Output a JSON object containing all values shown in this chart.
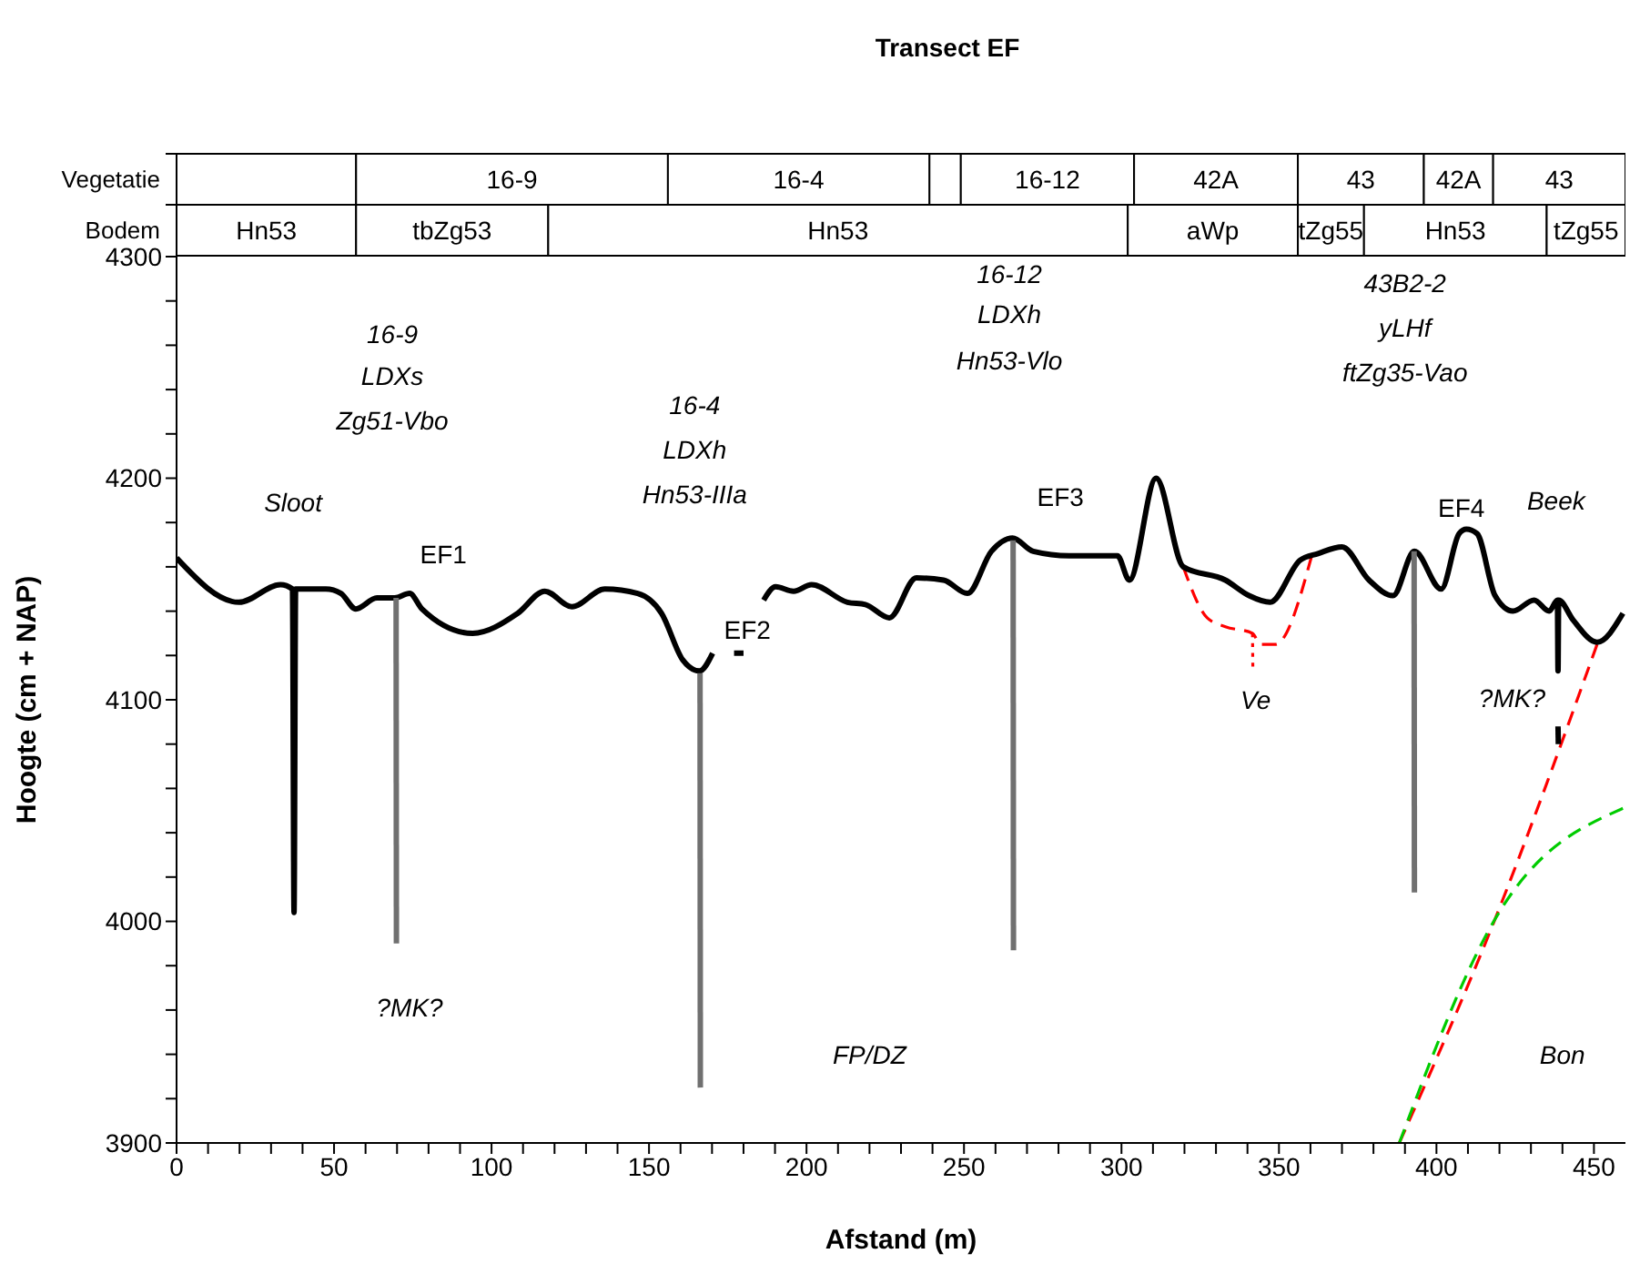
{
  "chart_data": [
    {
      "type": "other",
      "title": "Transect EF",
      "annotations": [
        "Vegetatie",
        "16-9",
        "16-4",
        "16-12",
        "42A",
        "43",
        "42A",
        "43",
        "Bodem",
        "Hn53",
        "tbZg53",
        "Hn53",
        "aWp",
        "tZg55",
        "Hn53",
        "tZg55"
      ]
    },
    {
      "type": "line",
      "xlabel": "Afstand (m)",
      "ylabel": "Hoogte (cm + NAP)",
      "xlim": [
        0,
        460
      ],
      "ylim": [
        3900,
        4300
      ],
      "marker": "none",
      "xticks": [
        0,
        {
          "value": 10,
          "label": null
        },
        {
          "value": 20,
          "label": null
        },
        {
          "value": 30,
          "label": null
        },
        {
          "value": 40,
          "label": null
        },
        50,
        {
          "value": 60,
          "label": null
        },
        {
          "value": 70,
          "label": null
        },
        {
          "value": 80,
          "label": null
        },
        {
          "value": 90,
          "label": null
        },
        100,
        {
          "value": 110,
          "label": null
        },
        {
          "value": 120,
          "label": null
        },
        {
          "value": 130,
          "label": null
        },
        {
          "value": 140,
          "label": null
        },
        150,
        {
          "value": 160,
          "label": null
        },
        {
          "value": 170,
          "label": null
        },
        {
          "value": 180,
          "label": null
        },
        {
          "value": 190,
          "label": null
        },
        200,
        {
          "value": 210,
          "label": null
        },
        {
          "value": 220,
          "label": null
        },
        {
          "value": 230,
          "label": null
        },
        {
          "value": 240,
          "label": null
        },
        250,
        {
          "value": 260,
          "label": null
        },
        {
          "value": 270,
          "label": null
        },
        {
          "value": 280,
          "label": null
        },
        {
          "value": 290,
          "label": null
        },
        300,
        {
          "value": 310,
          "label": null
        },
        {
          "value": 320,
          "label": null
        },
        {
          "value": 330,
          "label": null
        },
        {
          "value": 340,
          "label": null
        },
        350,
        {
          "value": 360,
          "label": null
        },
        {
          "value": 370,
          "label": null
        },
        {
          "value": 380,
          "label": null
        },
        {
          "value": 390,
          "label": null
        },
        400,
        {
          "value": 410,
          "label": null
        },
        {
          "value": 420,
          "label": null
        },
        {
          "value": 430,
          "label": null
        },
        {
          "value": 440,
          "label": null
        },
        450
      ],
      "yticks": [
        3900,
        {
          "value": 3920,
          "label": null
        },
        {
          "value": 3940,
          "label": null
        },
        {
          "value": 3960,
          "label": null
        },
        {
          "value": 3980,
          "label": null
        },
        4000,
        {
          "value": 4020,
          "label": null
        },
        {
          "value": 4040,
          "label": null
        },
        {
          "value": 4060,
          "label": null
        },
        {
          "value": 4080,
          "label": null
        },
        4100,
        {
          "value": 4120,
          "label": null
        },
        {
          "value": 4140,
          "label": null
        },
        {
          "value": 4160,
          "label": null
        },
        {
          "value": 4180,
          "label": null
        },
        4200,
        {
          "value": 4220,
          "label": null
        },
        {
          "value": 4240,
          "label": null
        },
        {
          "value": 4260,
          "label": null
        },
        {
          "value": 4280,
          "label": null
        },
        4300
      ],
      "series": [
        {
          "color": "#ff0000",
          "line_style": "dashed",
          "x": [
            319.6,
            327.2,
            333,
            341.6,
            344.2,
            348.8,
            360.4
          ],
          "values": [
            4160,
            4137,
            4133,
            4130,
            4125,
            4125,
            4165
          ]
        },
        {
          "color": "#ff0000",
          "line_style": "dotted",
          "x": [
            341.6,
            341.7
          ],
          "values": [
            4130,
            4115
          ]
        },
        {
          "color": "#ff0000",
          "line_style": "dashed",
          "x": [
            388.2,
            418.6,
            451
          ],
          "values": [
            3900,
            4001,
            4125
          ]
        },
        {
          "color": "#00cc00",
          "line_style": "dashed",
          "x": [
            388.2,
            418.6,
            459.2
          ],
          "values": [
            3900,
            4001,
            4051
          ]
        },
        {
          "color": "#000000",
          "line_style": "solid",
          "x": [
            0,
            19.8,
            33,
            36.8,
            37.3,
            37.8,
            47.4,
            52.2,
            56.9,
            63.6,
            69.3,
            74,
            77.9,
            94,
            108.3,
            116.9,
            125.5,
            136,
            146.4,
            154,
            160.7,
            166,
            170.2,
            173,
            177,
            180,
            183,
            186.4,
            190.2,
            195.9,
            201.6,
            213,
            218.7,
            226.3,
            234.9,
            243.5,
            251.1,
            258.7,
            265.4,
            272,
            283.4,
            298.7,
            302.5,
            311,
            319.6,
            333,
            340.5,
            347.2,
            356.7,
            362.4,
            370,
            378.6,
            386.2,
            393,
            401.5,
            407.2,
            409.5,
            412.9,
            418.6,
            424.3,
            431,
            435.8,
            438.4,
            438.6,
            438.8,
            443.4,
            451,
            459.2
          ],
          "values": [
            4164,
            4144,
            4152,
            4150,
            4004,
            4150,
            4150,
            4148,
            4141,
            4146,
            4146,
            4148,
            4141,
            4130,
            4139,
            4149,
            4142,
            4150,
            4148,
            4139,
            4118,
            4113,
            4121,
            null,
            4121,
            4121,
            null,
            4145,
            4151,
            4149,
            4152,
            4144,
            4143,
            4137,
            4155,
            4154,
            4148,
            4167,
            4173,
            4167,
            4165,
            4165,
            4154,
            4200,
            4160,
            4154,
            4147,
            4144,
            4163,
            4166,
            4169,
            4154,
            4147,
            4167,
            4150,
            4175,
            4177,
            4175,
            4147,
            4140,
            4145,
            4140,
            4145,
            4113,
            4145,
            4136,
            4126,
            4139
          ]
        },
        {
          "color": "#000000",
          "line_style": "solid",
          "x": [
            438.6,
            438.7
          ],
          "values": [
            4088,
            4080
          ]
        },
        {
          "name": "EF1",
          "color": "#707070",
          "line_style": "solid",
          "x": [
            69.7,
            69.8
          ],
          "values": [
            4146,
            3990
          ]
        },
        {
          "name": "EF2",
          "color": "#707070",
          "line_style": "solid",
          "x": [
            166.2,
            166.3
          ],
          "values": [
            4112,
            3925
          ]
        },
        {
          "name": "EF3",
          "color": "#707070",
          "line_style": "solid",
          "x": [
            265.6,
            265.7
          ],
          "values": [
            4172,
            3987
          ]
        },
        {
          "name": "EF4",
          "color": "#707070",
          "line_style": "solid",
          "x": [
            392.9,
            393
          ],
          "values": [
            4167,
            4013
          ]
        }
      ],
      "annotations": [
        "16-9",
        "LDXs",
        "Zg51-Vbo",
        "16-4",
        "LDXh",
        "Hn53-IIIa",
        "16-12",
        "LDXh",
        "Hn53-Vlo",
        "43B2-2",
        "yLHf",
        "ftZg35-Vao",
        "Sloot",
        "Beek",
        "Ve",
        "?MK?",
        "?MK?",
        "FP/DZ",
        "Bon"
      ]
    }
  ]
}
